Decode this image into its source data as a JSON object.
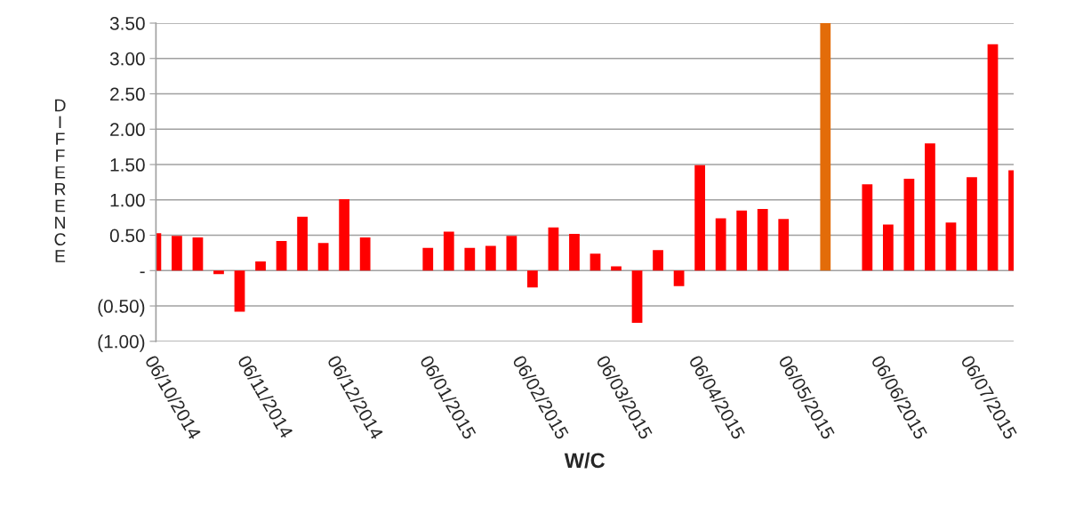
{
  "chart_data": {
    "type": "bar",
    "xlabel": "W/C",
    "ylabel": "DIFFERENCE",
    "x": [
      "2014-10-06",
      "2014-10-13",
      "2014-10-20",
      "2014-10-27",
      "2014-11-03",
      "2014-11-10",
      "2014-11-17",
      "2014-11-24",
      "2014-12-01",
      "2014-12-08",
      "2014-12-15",
      "2015-01-05",
      "2015-01-12",
      "2015-01-19",
      "2015-01-26",
      "2015-02-02",
      "2015-02-09",
      "2015-02-16",
      "2015-02-23",
      "2015-03-02",
      "2015-03-09",
      "2015-03-16",
      "2015-03-23",
      "2015-03-30",
      "2015-04-06",
      "2015-04-13",
      "2015-04-20",
      "2015-04-27",
      "2015-05-04",
      "2015-05-18",
      "2015-06-01",
      "2015-06-08",
      "2015-06-15",
      "2015-06-22",
      "2015-06-29",
      "2015-07-06",
      "2015-07-13",
      "2015-07-20"
    ],
    "values": [
      0.53,
      0.49,
      0.47,
      -0.05,
      -0.58,
      0.13,
      0.42,
      0.76,
      0.39,
      1.01,
      0.47,
      0.32,
      0.55,
      0.32,
      0.35,
      0.49,
      -0.24,
      0.61,
      0.52,
      0.24,
      0.06,
      -0.74,
      0.29,
      -0.22,
      1.49,
      0.74,
      0.85,
      0.87,
      0.73,
      3.5,
      1.22,
      0.65,
      1.3,
      1.8,
      0.68,
      1.32,
      3.2,
      1.42
    ],
    "colors": [
      "#ff0000",
      "#ff0000",
      "#ff0000",
      "#ff0000",
      "#ff0000",
      "#ff0000",
      "#ff0000",
      "#ff0000",
      "#ff0000",
      "#ff0000",
      "#ff0000",
      "#ff0000",
      "#ff0000",
      "#ff0000",
      "#ff0000",
      "#ff0000",
      "#ff0000",
      "#ff0000",
      "#ff0000",
      "#ff0000",
      "#ff0000",
      "#ff0000",
      "#ff0000",
      "#ff0000",
      "#ff0000",
      "#ff0000",
      "#ff0000",
      "#ff0000",
      "#ff0000",
      "#e36c09",
      "#ff0000",
      "#ff0000",
      "#ff0000",
      "#ff0000",
      "#ff0000",
      "#ff0000",
      "#ff0000",
      "#ff0000"
    ],
    "xlim": [
      "2014-10-06",
      "2015-07-20"
    ],
    "xticks": [
      {
        "value": "2014-10-06",
        "label": "06/10/2014"
      },
      {
        "value": "2014-11-06",
        "label": "06/11/2014"
      },
      {
        "value": "2014-12-06",
        "label": "06/12/2014"
      },
      {
        "value": "2015-01-06",
        "label": "06/01/2015"
      },
      {
        "value": "2015-02-06",
        "label": "06/02/2015"
      },
      {
        "value": "2015-03-06",
        "label": "06/03/2015"
      },
      {
        "value": "2015-04-06",
        "label": "06/04/2015"
      },
      {
        "value": "2015-05-06",
        "label": "06/05/2015"
      },
      {
        "value": "2015-06-06",
        "label": "06/06/2015"
      },
      {
        "value": "2015-07-06",
        "label": "06/07/2015"
      }
    ],
    "ylim": [
      -1.0,
      3.5
    ],
    "yticks": [
      {
        "value": -1.0,
        "label": "(1.00)"
      },
      {
        "value": -0.5,
        "label": "(0.50)"
      },
      {
        "value": 0,
        "label": "-"
      },
      {
        "value": 0.5,
        "label": "0.50"
      },
      {
        "value": 1.0,
        "label": "1.00"
      },
      {
        "value": 1.5,
        "label": "1.50"
      },
      {
        "value": 2.0,
        "label": "2.00"
      },
      {
        "value": 2.5,
        "label": "2.50"
      },
      {
        "value": 3.0,
        "label": "3.00"
      },
      {
        "value": 3.5,
        "label": "3.50"
      }
    ],
    "grid": "y",
    "legend": false
  }
}
